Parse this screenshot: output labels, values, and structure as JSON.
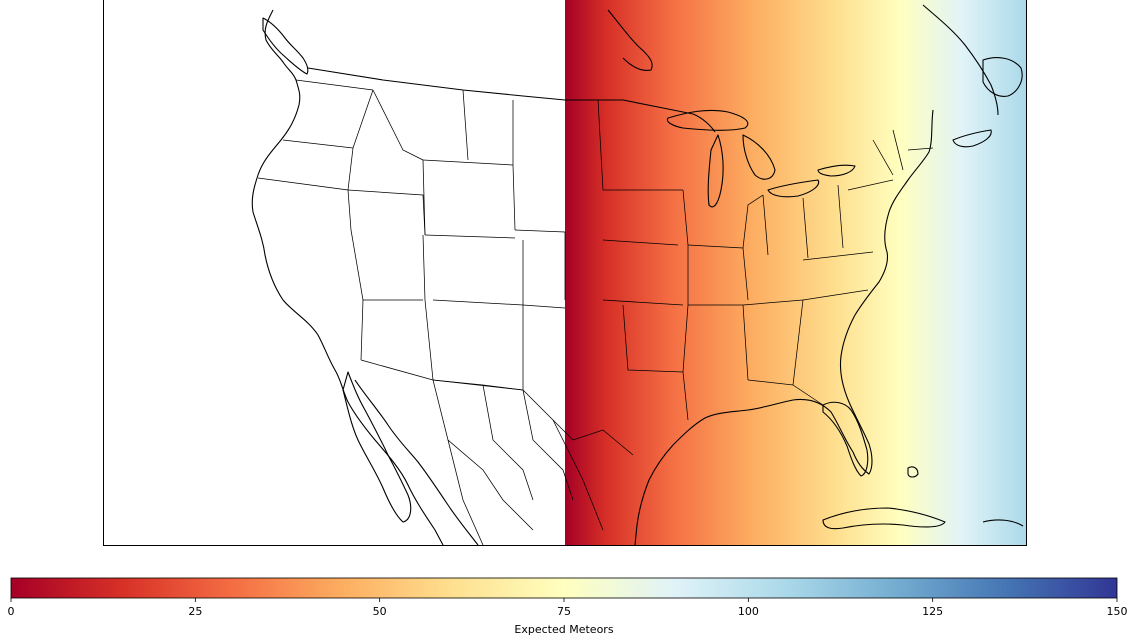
{
  "figure": {
    "colorbar": {
      "label": "Expected Meteors",
      "min": 0,
      "max": 150,
      "ticks": [
        {
          "value": 0,
          "label": "0"
        },
        {
          "value": 25,
          "label": "25"
        },
        {
          "value": 50,
          "label": "50"
        },
        {
          "value": 75,
          "label": "75"
        },
        {
          "value": 100,
          "label": "100"
        },
        {
          "value": 125,
          "label": "125"
        },
        {
          "value": 150,
          "label": "150"
        }
      ],
      "colormap": [
        "#a50026",
        "#d73027",
        "#f46d43",
        "#fdae61",
        "#fee090",
        "#ffffbf",
        "#e0f3f8",
        "#abd9e9",
        "#74add1",
        "#4575b4",
        "#313695"
      ]
    },
    "map": {
      "region": "North America",
      "no_data_color": "#ffffff",
      "field_gradient": [
        {
          "value": 0,
          "color": "#a50026"
        },
        {
          "value": 10,
          "color": "#d73027"
        },
        {
          "value": 25,
          "color": "#f46d43"
        },
        {
          "value": 45,
          "color": "#fdae61"
        },
        {
          "value": 65,
          "color": "#fee090"
        },
        {
          "value": 80,
          "color": "#ffffbf"
        },
        {
          "value": 95,
          "color": "#e0f3f8"
        },
        {
          "value": 110,
          "color": "#abd9e9"
        }
      ]
    }
  }
}
